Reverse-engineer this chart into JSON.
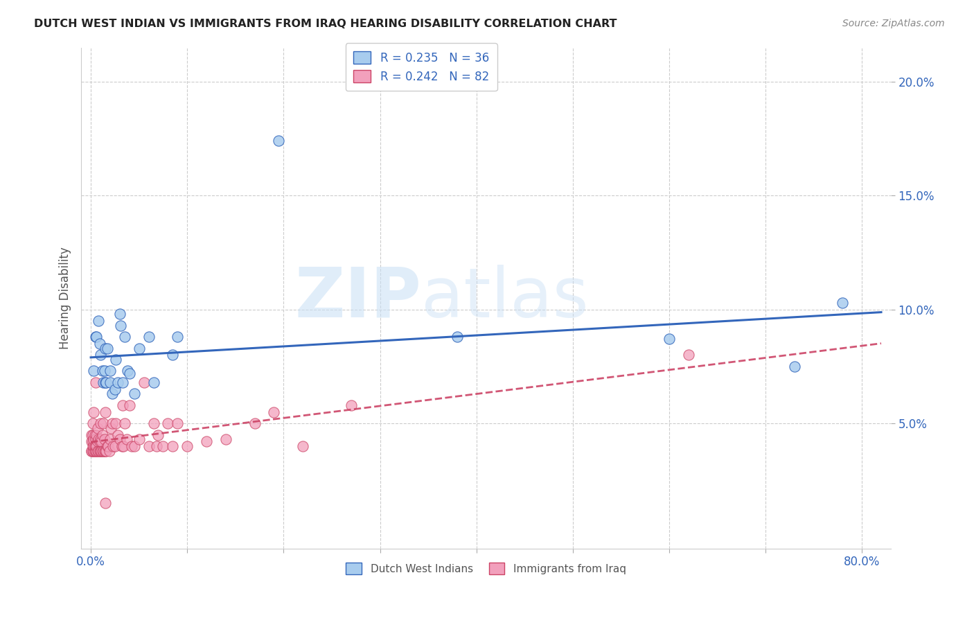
{
  "title": "DUTCH WEST INDIAN VS IMMIGRANTS FROM IRAQ HEARING DISABILITY CORRELATION CHART",
  "source": "Source: ZipAtlas.com",
  "ylabel": "Hearing Disability",
  "xlim": [
    -0.01,
    0.83
  ],
  "ylim": [
    -0.005,
    0.215
  ],
  "legend1_R": "0.235",
  "legend1_N": "36",
  "legend2_R": "0.242",
  "legend2_N": "82",
  "blue_color": "#A8CCEE",
  "pink_color": "#F2A0BC",
  "blue_line_color": "#3366BB",
  "pink_line_color": "#CC4466",
  "blue_scatter_x": [
    0.003,
    0.005,
    0.006,
    0.008,
    0.009,
    0.01,
    0.012,
    0.013,
    0.014,
    0.015,
    0.015,
    0.016,
    0.017,
    0.02,
    0.02,
    0.022,
    0.025,
    0.026,
    0.028,
    0.03,
    0.031,
    0.033,
    0.035,
    0.038,
    0.04,
    0.045,
    0.05,
    0.06,
    0.065,
    0.085,
    0.09,
    0.195,
    0.38,
    0.6,
    0.73,
    0.78
  ],
  "blue_scatter_y": [
    0.073,
    0.088,
    0.088,
    0.095,
    0.085,
    0.08,
    0.073,
    0.068,
    0.073,
    0.068,
    0.083,
    0.068,
    0.083,
    0.073,
    0.068,
    0.063,
    0.065,
    0.078,
    0.068,
    0.098,
    0.093,
    0.068,
    0.088,
    0.073,
    0.072,
    0.063,
    0.083,
    0.088,
    0.068,
    0.08,
    0.088,
    0.174,
    0.088,
    0.087,
    0.075,
    0.103
  ],
  "pink_scatter_x": [
    0.001,
    0.001,
    0.001,
    0.001,
    0.002,
    0.002,
    0.002,
    0.002,
    0.002,
    0.003,
    0.003,
    0.003,
    0.003,
    0.004,
    0.004,
    0.004,
    0.005,
    0.005,
    0.005,
    0.005,
    0.006,
    0.006,
    0.006,
    0.007,
    0.007,
    0.007,
    0.008,
    0.008,
    0.009,
    0.009,
    0.01,
    0.01,
    0.01,
    0.011,
    0.011,
    0.012,
    0.012,
    0.013,
    0.013,
    0.014,
    0.014,
    0.015,
    0.015,
    0.016,
    0.017,
    0.018,
    0.019,
    0.02,
    0.021,
    0.022,
    0.023,
    0.025,
    0.026,
    0.028,
    0.03,
    0.032,
    0.033,
    0.034,
    0.035,
    0.037,
    0.04,
    0.042,
    0.045,
    0.05,
    0.055,
    0.06,
    0.065,
    0.068,
    0.07,
    0.075,
    0.08,
    0.085,
    0.09,
    0.1,
    0.12,
    0.14,
    0.17,
    0.19,
    0.22,
    0.27,
    0.62,
    0.015
  ],
  "pink_scatter_y": [
    0.038,
    0.038,
    0.042,
    0.045,
    0.038,
    0.04,
    0.042,
    0.045,
    0.05,
    0.038,
    0.04,
    0.043,
    0.055,
    0.038,
    0.04,
    0.045,
    0.038,
    0.04,
    0.043,
    0.068,
    0.038,
    0.04,
    0.045,
    0.038,
    0.042,
    0.048,
    0.038,
    0.043,
    0.038,
    0.042,
    0.038,
    0.043,
    0.05,
    0.038,
    0.042,
    0.038,
    0.045,
    0.038,
    0.05,
    0.038,
    0.043,
    0.038,
    0.055,
    0.038,
    0.04,
    0.04,
    0.038,
    0.043,
    0.048,
    0.05,
    0.04,
    0.04,
    0.05,
    0.045,
    0.043,
    0.04,
    0.058,
    0.04,
    0.05,
    0.043,
    0.058,
    0.04,
    0.04,
    0.043,
    0.068,
    0.04,
    0.05,
    0.04,
    0.045,
    0.04,
    0.05,
    0.04,
    0.05,
    0.04,
    0.042,
    0.043,
    0.05,
    0.055,
    0.04,
    0.058,
    0.08,
    0.015
  ],
  "watermark_zip": "ZIP",
  "watermark_atlas": "atlas",
  "background_color": "#FFFFFF",
  "grid_color": "#CCCCCC"
}
